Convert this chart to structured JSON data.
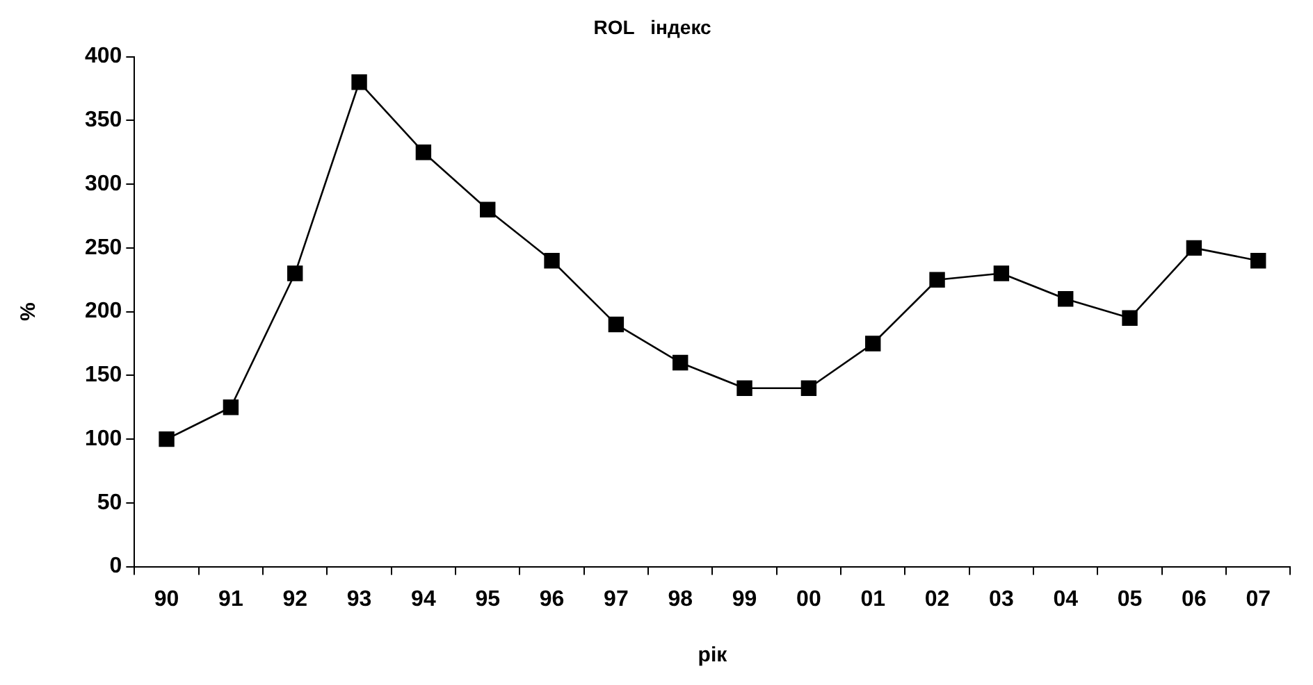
{
  "chart_data": {
    "type": "line",
    "title": "ROL   індекс",
    "xlabel": "рік",
    "ylabel": "%",
    "categories": [
      "90",
      "91",
      "92",
      "93",
      "94",
      "95",
      "96",
      "97",
      "98",
      "99",
      "00",
      "01",
      "02",
      "03",
      "04",
      "05",
      "06",
      "07"
    ],
    "series": [
      {
        "color": "#000000",
        "values": [
          100,
          125,
          230,
          380,
          325,
          280,
          240,
          190,
          160,
          140,
          140,
          175,
          225,
          230,
          210,
          195,
          250,
          240
        ]
      }
    ],
    "ylim": [
      0,
      400
    ],
    "yticks": [
      0,
      50,
      100,
      150,
      200,
      250,
      300,
      350,
      400
    ],
    "grid": false,
    "legend": false,
    "marker": "square",
    "line_style": "solid"
  }
}
